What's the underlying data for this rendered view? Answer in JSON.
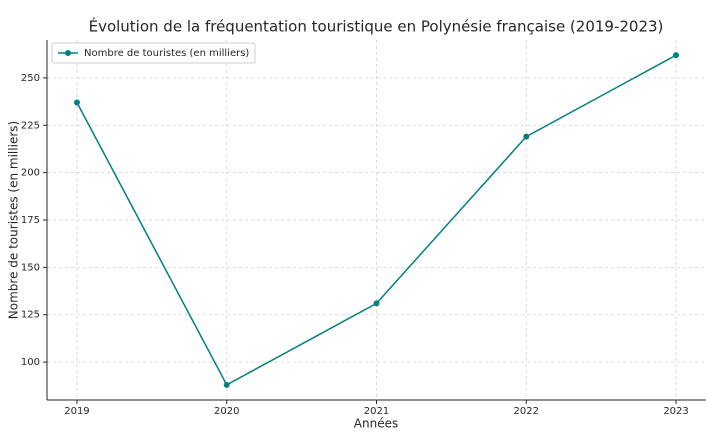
{
  "chart_data": {
    "type": "line",
    "title": "Évolution de la fréquentation touristique en Polynésie française (2019-2023)",
    "x_label": "Années",
    "y_label": "Nombre de touristes (en milliers)",
    "x": [
      2019,
      2020,
      2021,
      2022,
      2023
    ],
    "series": [
      {
        "name": "Nombre de touristes (en milliers)",
        "color": "#008080",
        "values": [
          237,
          88,
          131,
          219,
          262
        ]
      }
    ],
    "xlim": [
      2018.8,
      2023.2
    ],
    "ylim": [
      80,
      270
    ],
    "xticks": [
      2019,
      2020,
      2021,
      2022,
      2023
    ],
    "yticks": [
      100,
      125,
      150,
      175,
      200,
      225,
      250
    ],
    "grid": true,
    "legend": "upper-left"
  }
}
